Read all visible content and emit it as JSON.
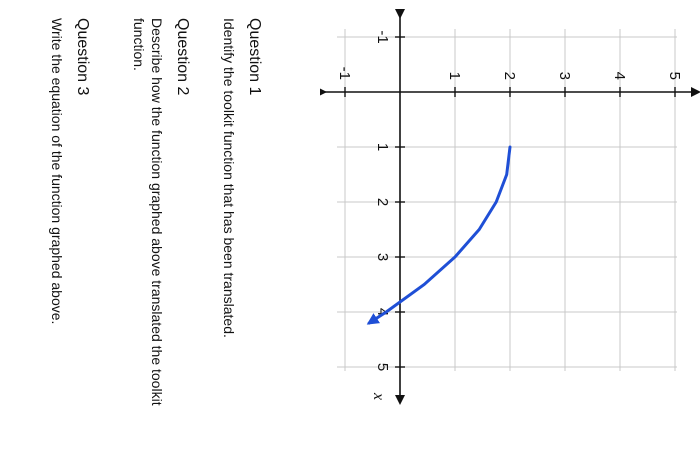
{
  "chart_data": {
    "type": "line",
    "xlabel": "x",
    "ylabel": "",
    "xlim": [
      -1,
      5
    ],
    "ylim": [
      -1,
      5
    ],
    "x_ticks": [
      "-1",
      "1",
      "2",
      "3",
      "4",
      "5"
    ],
    "y_ticks": [
      "-1",
      "1",
      "2",
      "3",
      "4",
      "5"
    ],
    "grid": true,
    "line_color": "#1f4fd6",
    "curve": {
      "x": [
        1,
        1.5,
        2,
        2.5,
        3,
        3.5,
        4,
        4.2
      ],
      "y": [
        2,
        1.94,
        1.75,
        1.44,
        1.0,
        0.44,
        -0.25,
        -0.56
      ],
      "end": "arrow"
    }
  },
  "questions": [
    {
      "title": "Question 1",
      "text": "Identify the toolkit function that has been translated."
    },
    {
      "title": "Question 2",
      "text": "Describe how the function graphed above translated the toolkit function."
    },
    {
      "title": "Question 3",
      "text": "Write the equation of the function graphed above."
    }
  ]
}
